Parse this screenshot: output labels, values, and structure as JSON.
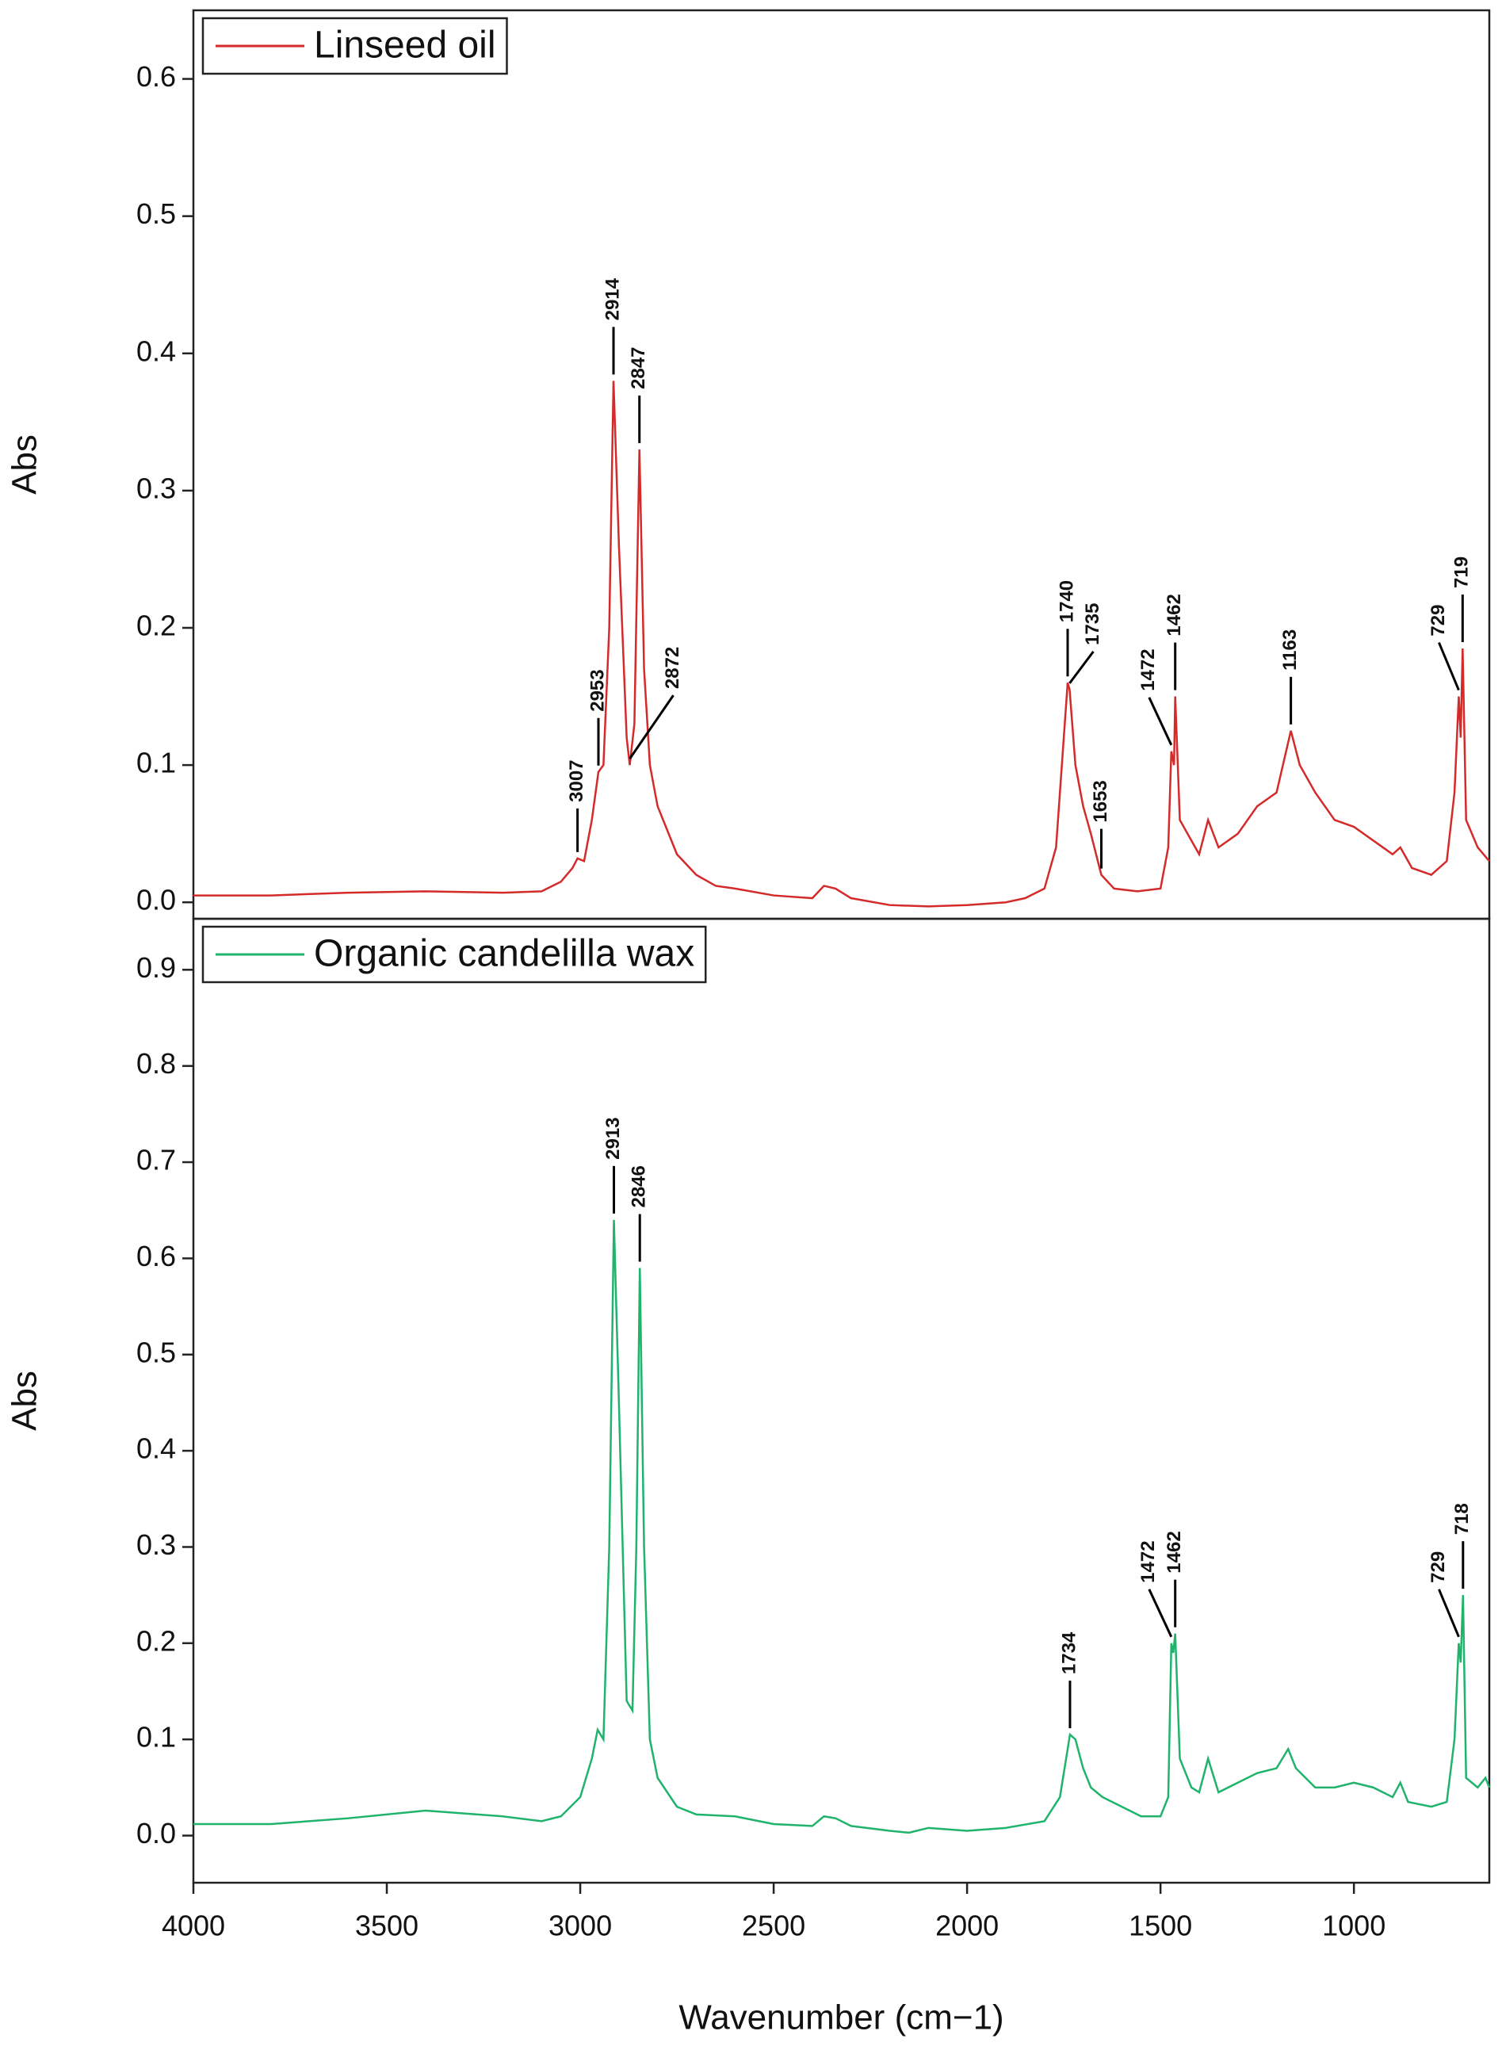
{
  "chart_data": [
    {
      "type": "line",
      "ylabel": "Abs",
      "xlim": [
        4000,
        650
      ],
      "ylim": [
        -0.012,
        0.65
      ],
      "yticks": [
        {
          "value": 0,
          "label": "0.0"
        },
        0.1,
        0.2,
        0.3,
        0.4,
        0.5,
        0.6
      ],
      "x": [
        4000,
        3800,
        3600,
        3400,
        3200,
        3100,
        3050,
        3020,
        3007,
        2990,
        2970,
        2953,
        2940,
        2925,
        2914,
        2900,
        2880,
        2872,
        2860,
        2847,
        2835,
        2820,
        2800,
        2750,
        2700,
        2650,
        2600,
        2500,
        2400,
        2370,
        2340,
        2300,
        2200,
        2100,
        2000,
        1900,
        1850,
        1800,
        1770,
        1750,
        1740,
        1735,
        1720,
        1700,
        1680,
        1653,
        1620,
        1560,
        1500,
        1480,
        1472,
        1465,
        1462,
        1450,
        1420,
        1400,
        1377,
        1350,
        1300,
        1250,
        1200,
        1163,
        1140,
        1100,
        1050,
        1000,
        950,
        900,
        880,
        850,
        800,
        760,
        740,
        729,
        724,
        719,
        710,
        680,
        650
      ],
      "series": [
        {
          "name": "Linseed oil",
          "color": "#d42a2a",
          "values": [
            0.005,
            0.005,
            0.007,
            0.008,
            0.007,
            0.008,
            0.015,
            0.025,
            0.032,
            0.03,
            0.06,
            0.095,
            0.1,
            0.2,
            0.38,
            0.26,
            0.12,
            0.1,
            0.13,
            0.33,
            0.17,
            0.1,
            0.07,
            0.035,
            0.02,
            0.012,
            0.01,
            0.005,
            0.003,
            0.012,
            0.01,
            0.003,
            -0.002,
            -0.003,
            -0.002,
            0,
            0.003,
            0.01,
            0.04,
            0.12,
            0.16,
            0.155,
            0.1,
            0.07,
            0.05,
            0.02,
            0.01,
            0.008,
            0.01,
            0.04,
            0.11,
            0.1,
            0.15,
            0.06,
            0.045,
            0.035,
            0.06,
            0.04,
            0.05,
            0.07,
            0.08,
            0.125,
            0.1,
            0.08,
            0.06,
            0.055,
            0.045,
            0.035,
            0.04,
            0.025,
            0.02,
            0.03,
            0.08,
            0.15,
            0.12,
            0.185,
            0.06,
            0.04,
            0.03
          ]
        }
      ],
      "peaks": [
        3007,
        2953,
        2914,
        2847,
        2872,
        1740,
        1735,
        1653,
        1472,
        1462,
        1163,
        729,
        719
      ]
    },
    {
      "type": "line",
      "ylabel": "Abs",
      "xlabel": "Wavenumber (cm−1)",
      "xlim": [
        4000,
        650
      ],
      "xticks": [
        4000,
        3500,
        3000,
        2500,
        2000,
        1500,
        1000
      ],
      "ylim": [
        -0.049,
        0.953
      ],
      "yticks": [
        {
          "value": 0,
          "label": "0.0"
        },
        0.1,
        0.2,
        0.3,
        0.4,
        0.5,
        0.6,
        0.7,
        0.8,
        0.9
      ],
      "x": [
        4000,
        3800,
        3600,
        3400,
        3200,
        3100,
        3050,
        3000,
        2970,
        2955,
        2940,
        2925,
        2913,
        2900,
        2880,
        2865,
        2855,
        2846,
        2835,
        2820,
        2800,
        2750,
        2700,
        2600,
        2500,
        2400,
        2370,
        2340,
        2300,
        2200,
        2150,
        2100,
        2000,
        1900,
        1800,
        1760,
        1740,
        1734,
        1720,
        1700,
        1680,
        1650,
        1600,
        1550,
        1500,
        1480,
        1472,
        1467,
        1462,
        1450,
        1420,
        1400,
        1377,
        1350,
        1300,
        1250,
        1200,
        1170,
        1150,
        1100,
        1050,
        1000,
        950,
        900,
        880,
        860,
        800,
        760,
        740,
        729,
        724,
        718,
        710,
        680,
        660,
        650
      ],
      "series": [
        {
          "name": "Organic candelilla wax",
          "color": "#1fb36c",
          "values": [
            0.012,
            0.012,
            0.018,
            0.026,
            0.02,
            0.015,
            0.02,
            0.04,
            0.08,
            0.11,
            0.1,
            0.3,
            0.64,
            0.45,
            0.14,
            0.13,
            0.3,
            0.59,
            0.3,
            0.1,
            0.06,
            0.03,
            0.022,
            0.02,
            0.012,
            0.01,
            0.02,
            0.018,
            0.01,
            0.005,
            0.003,
            0.008,
            0.005,
            0.008,
            0.015,
            0.04,
            0.09,
            0.105,
            0.1,
            0.07,
            0.05,
            0.04,
            0.03,
            0.02,
            0.02,
            0.04,
            0.2,
            0.19,
            0.21,
            0.08,
            0.05,
            0.045,
            0.08,
            0.045,
            0.055,
            0.065,
            0.07,
            0.09,
            0.07,
            0.05,
            0.05,
            0.055,
            0.05,
            0.04,
            0.055,
            0.035,
            0.03,
            0.035,
            0.1,
            0.2,
            0.18,
            0.25,
            0.06,
            0.05,
            0.06,
            0.05
          ]
        }
      ],
      "peaks": [
        2913,
        2846,
        1734,
        1472,
        1462,
        729,
        718
      ]
    }
  ]
}
